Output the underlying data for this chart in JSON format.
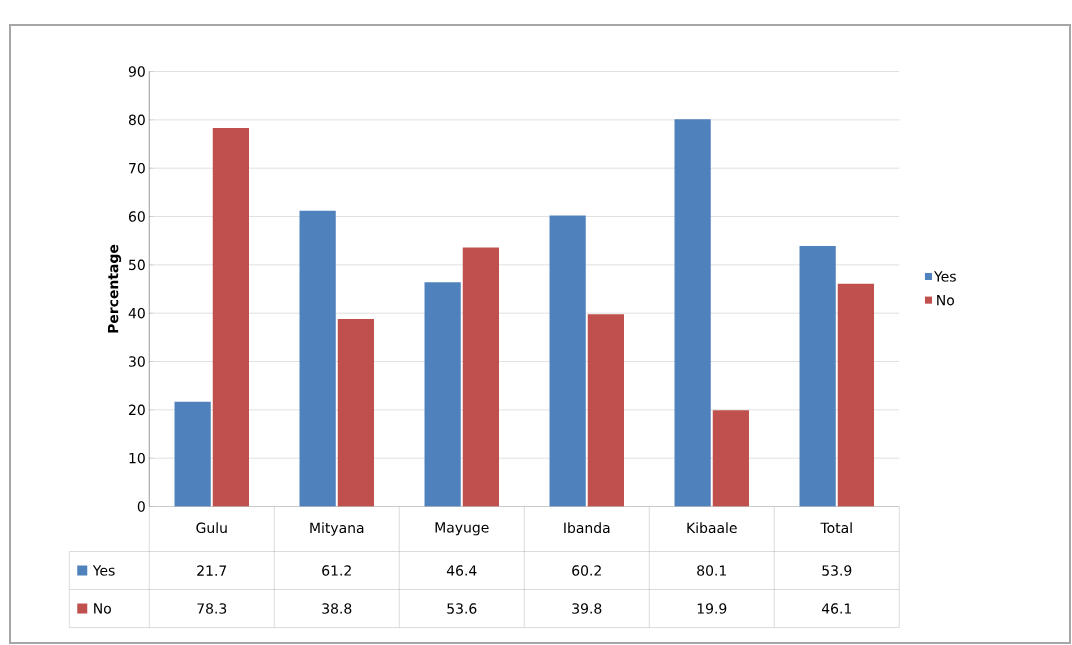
{
  "chart_data": {
    "type": "bar",
    "ylabel": "Percentage",
    "categories": [
      "Gulu",
      "Mityana",
      "Mayuge",
      "Ibanda",
      "Kibaale",
      "Total"
    ],
    "series": [
      {
        "name": "Yes",
        "color": "#4f81bd",
        "values": [
          21.7,
          61.2,
          46.4,
          60.2,
          80.1,
          53.9
        ]
      },
      {
        "name": "No",
        "color": "#c0504d",
        "values": [
          78.3,
          38.8,
          53.6,
          39.8,
          19.9,
          46.1
        ]
      }
    ],
    "ylim": [
      0,
      90
    ],
    "yticks": [
      0,
      10,
      20,
      30,
      40,
      50,
      60,
      70,
      80,
      90
    ],
    "grid": "y",
    "legend": "right",
    "data_labels": true
  }
}
